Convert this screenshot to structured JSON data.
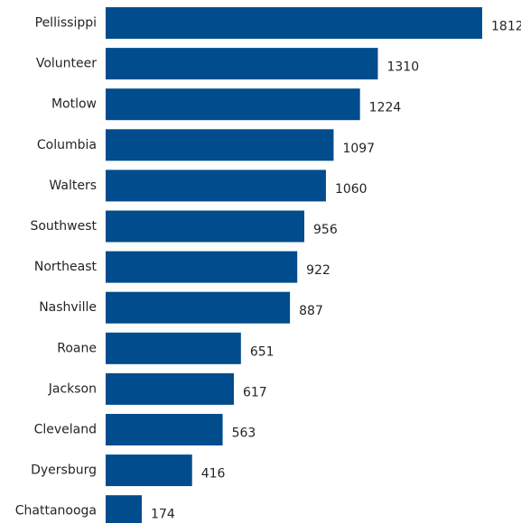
{
  "chart_data": {
    "type": "bar",
    "orientation": "horizontal",
    "categories": [
      "Pellissippi",
      "Volunteer",
      "Motlow",
      "Columbia",
      "Walters",
      "Southwest",
      "Northeast",
      "Nashville",
      "Roane",
      "Jackson",
      "Cleveland",
      "Dyersburg",
      "Chattanooga"
    ],
    "values": [
      1812,
      1310,
      1224,
      1097,
      1060,
      956,
      922,
      887,
      651,
      617,
      563,
      416,
      174
    ],
    "data_labels": [
      "1812",
      "1310",
      "1224",
      "1097",
      "1060",
      "956",
      "922",
      "887",
      "651",
      "617",
      "563",
      "416",
      "174"
    ],
    "title": "",
    "xlabel": "",
    "ylabel": "",
    "xlim": [
      0,
      1812
    ],
    "grid": false,
    "legend": "none",
    "bar_color": "#004C8C"
  }
}
